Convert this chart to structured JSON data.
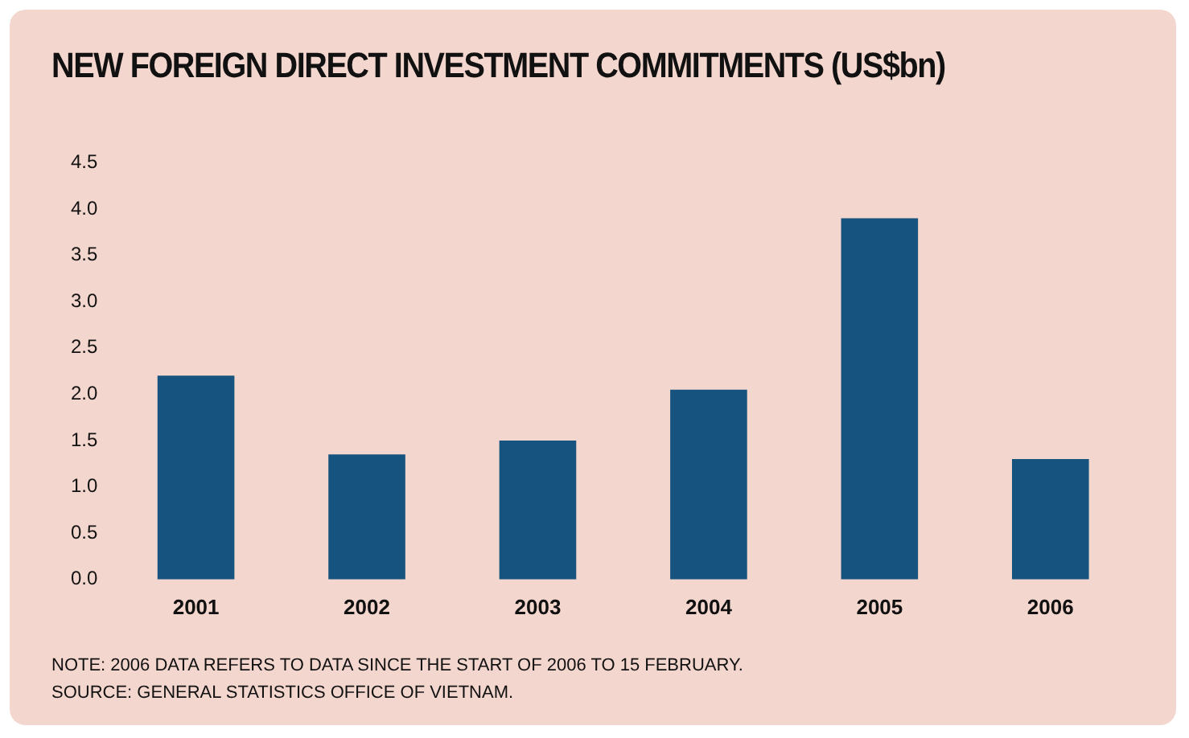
{
  "chart_data": {
    "type": "bar",
    "title": "NEW FOREIGN DIRECT INVESTMENT COMMITMENTS (US$bn)",
    "categories": [
      "2001",
      "2002",
      "2003",
      "2004",
      "2005",
      "2006"
    ],
    "values": [
      2.2,
      1.35,
      1.5,
      2.05,
      3.9,
      1.3
    ],
    "color": "#16537e",
    "ylim": [
      0,
      4.5
    ],
    "yticks": [
      {
        "value": 0,
        "label": "0.0"
      },
      {
        "value": 0.5,
        "label": "0.5"
      },
      {
        "value": 1,
        "label": "1.0"
      },
      {
        "value": 1.5,
        "label": "1.5"
      },
      {
        "value": 2,
        "label": "2.0"
      },
      {
        "value": 2.5,
        "label": "2.5"
      },
      {
        "value": 3,
        "label": "3.0"
      },
      {
        "value": 3.5,
        "label": "3.5"
      },
      {
        "value": 4,
        "label": "4.0"
      },
      {
        "value": 4.5,
        "label": "4.5"
      }
    ],
    "grid": false,
    "legend": false,
    "annotations": [
      "NOTE: 2006 DATA REFERS TO DATA SINCE THE START OF 2006 TO 15 FEBRUARY.",
      "SOURCE: GENERAL STATISTICS OFFICE OF VIETNAM."
    ]
  }
}
